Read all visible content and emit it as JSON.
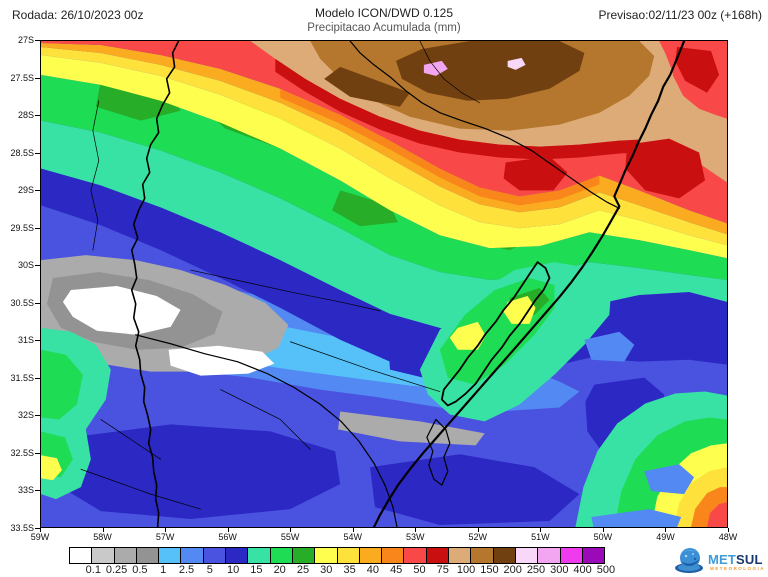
{
  "header": {
    "run_label": "Rodada: 26/10/2023 00z",
    "model_title": "Modelo ICON/DWD 0.125",
    "subtitle": "Precipitacao Acumulada (mm)",
    "forecast_label": "Previsao:02/11/23 00z (+168h)"
  },
  "map": {
    "lat_labels": [
      "27S",
      "27.5S",
      "28S",
      "28.5S",
      "29S",
      "29.5S",
      "30S",
      "30.5S",
      "31S",
      "31.5S",
      "32S",
      "32.5S",
      "33S",
      "33.5S"
    ],
    "lon_labels": [
      "59W",
      "58W",
      "57W",
      "56W",
      "55W",
      "54W",
      "53W",
      "52W",
      "51W",
      "50W",
      "49W",
      "48W"
    ]
  },
  "legend": {
    "values": [
      "0.1",
      "0.25",
      "0.5",
      "1",
      "2.5",
      "5",
      "10",
      "15",
      "20",
      "25",
      "30",
      "35",
      "40",
      "45",
      "50",
      "75",
      "100",
      "150",
      "200",
      "250",
      "300",
      "400",
      "500"
    ],
    "colors": [
      "#ffffff",
      "#c9c9c9",
      "#ababab",
      "#939393",
      "#55c1f8",
      "#5389f2",
      "#4a52e0",
      "#2b28c4",
      "#38e2a4",
      "#1fdc55",
      "#27ad27",
      "#fefe4e",
      "#fee13a",
      "#fbab1f",
      "#f8861a",
      "#f94848",
      "#c90f0f",
      "#dcab78",
      "#b5762e",
      "#714010",
      "#f9d7f9",
      "#f2a6f2",
      "#ee3bee",
      "#9a0ab8"
    ]
  },
  "logo": {
    "text_met": "MET",
    "text_sul": "SUL",
    "tagline": "METEOROLOGIA",
    "color_met": "#3f9bd8",
    "color_sul": "#16386e",
    "color_tagline": "#f09a2e"
  }
}
